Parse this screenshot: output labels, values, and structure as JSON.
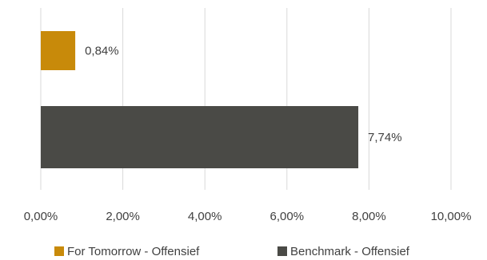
{
  "chart_data": {
    "type": "bar",
    "orientation": "horizontal",
    "grid": true,
    "legend_position": "bottom",
    "xlim": [
      0,
      10
    ],
    "x_ticks": [
      0,
      2,
      4,
      6,
      8,
      10
    ],
    "x_tick_labels": [
      "0,00%",
      "2,00%",
      "4,00%",
      "6,00%",
      "8,00%",
      "10,00%"
    ],
    "series": [
      {
        "name": "For Tomorrow - Offensief",
        "value": 0.84,
        "label": "0,84%",
        "color": "#C88A0A"
      },
      {
        "name": "Benchmark - Offensief",
        "value": 7.74,
        "label": "7,74%",
        "color": "#4A4A46"
      }
    ],
    "gridline_color": "#D9D9D9"
  }
}
